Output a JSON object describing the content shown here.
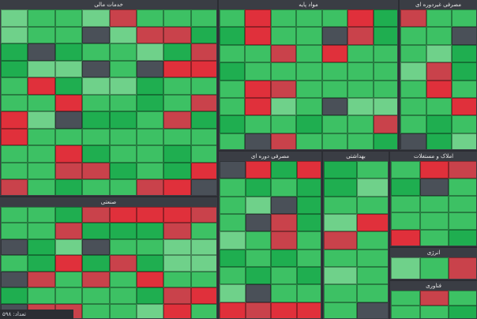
{
  "colors": {
    "up_strong": "#1fae50",
    "up": "#3dc164",
    "up_light": "#6fd18a",
    "down_strong": "#e0303b",
    "down": "#c9424b",
    "neutral": "#4a5058"
  },
  "sectors": [
    {
      "name": "خدمات مالی",
      "seed": 3
    },
    {
      "name": "مواد پایه",
      "seed": 7
    },
    {
      "name": "مصرفی غیردوره ای",
      "seed": 11
    },
    {
      "name": "مصرفی دوره ای",
      "seed": 13
    },
    {
      "name": "بهداشتی",
      "seed": 17
    },
    {
      "name": "املاک و مستغلات",
      "seed": 19
    },
    {
      "name": "صنعتی",
      "seed": 23
    },
    {
      "name": "انرژی",
      "seed": 29
    },
    {
      "name": "فناوری",
      "seed": 31
    }
  ],
  "footer": {
    "label": "تعداد: ۵۹۸"
  }
}
